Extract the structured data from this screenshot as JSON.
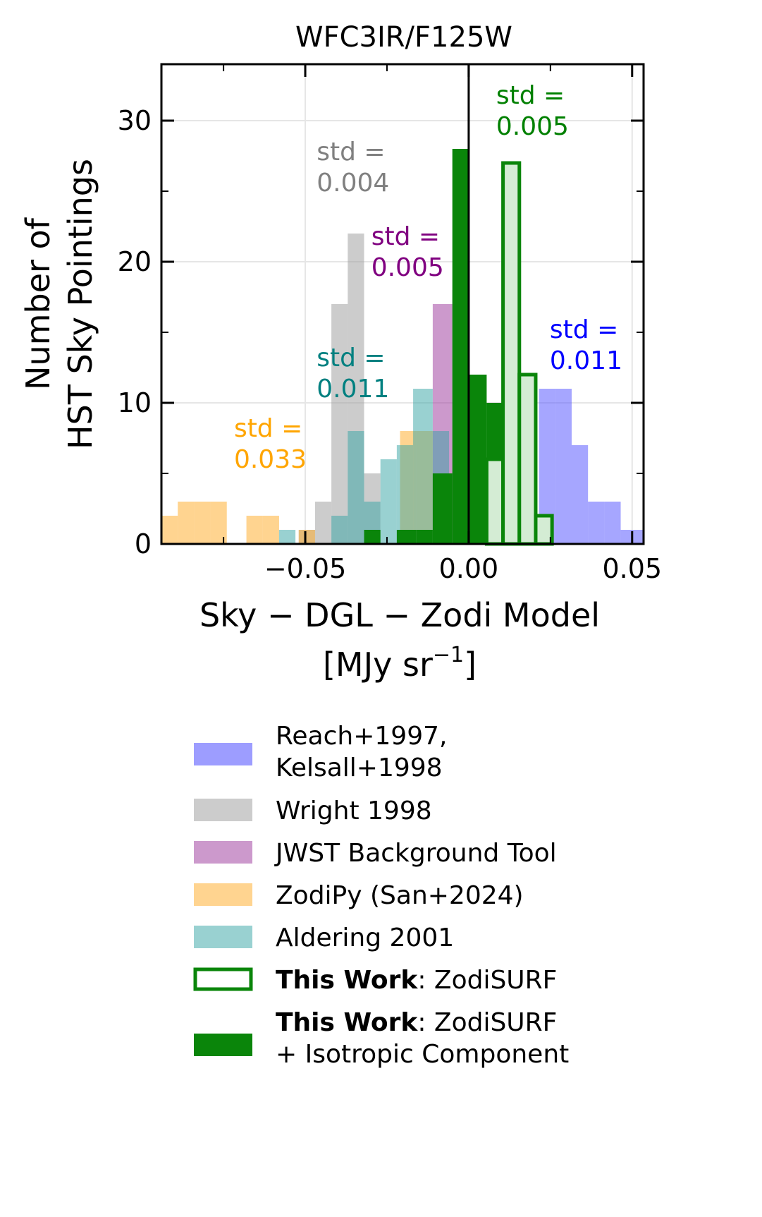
{
  "chart_data": {
    "type": "histogram",
    "title": "WFC3IR/F125W",
    "ylabel_lines": [
      "Number of",
      "HST Sky Pointings"
    ],
    "xlabel_line1": "Sky − DGL − Zodi Model",
    "xlabel_line2_main": "[MJy sr",
    "xlabel_line2_sup": "−1",
    "xlabel_line2_end": "]",
    "xlim": [
      -0.094,
      0.0535
    ],
    "ylim": [
      0,
      34
    ],
    "x_ticks": [
      -0.05,
      0.0,
      0.05
    ],
    "x_tick_labels": [
      "−0.05",
      "0.00",
      "0.05"
    ],
    "y_ticks": [
      0,
      10,
      20,
      30
    ],
    "y_tick_labels": [
      "0",
      "10",
      "20",
      "30"
    ],
    "reference_line_x": 0.0,
    "series": [
      {
        "name": "Wright 1998",
        "color": "#999999",
        "alpha": 0.5,
        "style": "filled",
        "bins": [
          {
            "x0": -0.052,
            "x1": -0.047,
            "count": 1
          },
          {
            "x0": -0.047,
            "x1": -0.042,
            "count": 3
          },
          {
            "x0": -0.042,
            "x1": -0.037,
            "count": 17
          },
          {
            "x0": -0.037,
            "x1": -0.032,
            "count": 22
          },
          {
            "x0": -0.032,
            "x1": -0.027,
            "count": 5
          }
        ]
      },
      {
        "name": "Reach+1997, Kelsall+1998",
        "color": "#4d4dff",
        "alpha": 0.5,
        "style": "filled",
        "bins": [
          {
            "x0": 0.0115,
            "x1": 0.0165,
            "count": 5
          },
          {
            "x0": 0.0165,
            "x1": 0.0215,
            "count": 2
          },
          {
            "x0": 0.0215,
            "x1": 0.0265,
            "count": 11
          },
          {
            "x0": 0.0265,
            "x1": 0.0315,
            "count": 11
          },
          {
            "x0": 0.0315,
            "x1": 0.0365,
            "count": 7
          },
          {
            "x0": 0.0365,
            "x1": 0.0415,
            "count": 3
          },
          {
            "x0": 0.0415,
            "x1": 0.0465,
            "count": 3
          },
          {
            "x0": 0.0465,
            "x1": 0.0535,
            "count": 1
          }
        ]
      },
      {
        "name": "JWST Background Tool",
        "color": "#993399",
        "alpha": 0.5,
        "style": "filled",
        "bins": [
          {
            "x0": -0.011,
            "x1": -0.005,
            "count": 17
          },
          {
            "x0": -0.005,
            "x1": 0.0,
            "count": 18
          }
        ]
      },
      {
        "name": "ZodiPy (San+2024)",
        "color": "#ffaa22",
        "alpha": 0.5,
        "style": "filled",
        "bins": [
          {
            "x0": -0.094,
            "x1": -0.089,
            "count": 2
          },
          {
            "x0": -0.089,
            "x1": -0.084,
            "count": 3
          },
          {
            "x0": -0.084,
            "x1": -0.079,
            "count": 3
          },
          {
            "x0": -0.079,
            "x1": -0.074,
            "count": 3
          },
          {
            "x0": -0.068,
            "x1": -0.063,
            "count": 2
          },
          {
            "x0": -0.063,
            "x1": -0.058,
            "count": 2
          },
          {
            "x0": -0.052,
            "x1": -0.047,
            "count": 1
          },
          {
            "x0": -0.021,
            "x1": -0.016,
            "count": 8
          },
          {
            "x0": -0.016,
            "x1": -0.011,
            "count": 8
          }
        ]
      },
      {
        "name": "Aldering 2001",
        "color": "#33a3a3",
        "alpha": 0.5,
        "style": "filled",
        "bins": [
          {
            "x0": -0.058,
            "x1": -0.053,
            "count": 1
          },
          {
            "x0": -0.042,
            "x1": -0.037,
            "count": 2
          },
          {
            "x0": -0.037,
            "x1": -0.032,
            "count": 8
          },
          {
            "x0": -0.032,
            "x1": -0.027,
            "count": 3
          },
          {
            "x0": -0.027,
            "x1": -0.022,
            "count": 6
          },
          {
            "x0": -0.022,
            "x1": -0.017,
            "count": 7
          },
          {
            "x0": -0.017,
            "x1": -0.011,
            "count": 11
          },
          {
            "x0": -0.011,
            "x1": -0.006,
            "count": 8
          }
        ]
      },
      {
        "name": "ZodiSURF + Isotropic Component",
        "legend_bold": "This Work",
        "legend_rest_1": ": ZodiSURF",
        "legend_rest_2": "+ Isotropic Component",
        "color": "#0a850a",
        "alpha": 1.0,
        "style": "filled",
        "bins": [
          {
            "x0": -0.032,
            "x1": -0.027,
            "count": 1
          },
          {
            "x0": -0.022,
            "x1": -0.016,
            "count": 1
          },
          {
            "x0": -0.016,
            "x1": -0.011,
            "count": 1
          },
          {
            "x0": -0.011,
            "x1": -0.005,
            "count": 5
          },
          {
            "x0": -0.005,
            "x1": 0.0,
            "count": 28
          },
          {
            "x0": 0.0,
            "x1": 0.0055,
            "count": 12
          },
          {
            "x0": 0.0055,
            "x1": 0.011,
            "count": 10
          }
        ]
      },
      {
        "name": "ZodiSURF",
        "legend_bold": "This Work",
        "legend_rest_1": ": ZodiSURF",
        "color": "#0a850a",
        "alpha": 1.0,
        "style": "outline",
        "bins": [
          {
            "x0": 0.0055,
            "x1": 0.0105,
            "count": 6
          },
          {
            "x0": 0.0105,
            "x1": 0.0155,
            "count": 27
          },
          {
            "x0": 0.0155,
            "x1": 0.0205,
            "count": 12
          },
          {
            "x0": 0.0205,
            "x1": 0.0255,
            "count": 2
          }
        ]
      }
    ],
    "annotations": [
      {
        "line1": "std =",
        "line2": "0.004",
        "color": "#808080",
        "x": -0.0465,
        "y": 27.2
      },
      {
        "line1": "std =",
        "line2": "0.005",
        "color": "#800080",
        "x": -0.0298,
        "y": 21.2
      },
      {
        "line1": "std =",
        "line2": "0.005",
        "color": "#008000",
        "x": 0.0084,
        "y": 31.2
      },
      {
        "line1": "std =",
        "line2": "0.011",
        "color": "#0000ff",
        "x": 0.0248,
        "y": 14.6
      },
      {
        "line1": "std =",
        "line2": "0.011",
        "color": "#008080",
        "x": -0.0465,
        "y": 12.6
      },
      {
        "line1": "std =",
        "line2": "0.033",
        "color": "#ffa500",
        "x": -0.0718,
        "y": 7.6
      }
    ],
    "legend_order": [
      "Reach+1997, Kelsall+1998",
      "Wright 1998",
      "JWST Background Tool",
      "ZodiPy (San+2024)",
      "Aldering 2001",
      "ZodiSURF",
      "ZodiSURF + Isotropic Component"
    ]
  },
  "legend": {
    "reach_line1": "Reach+1997,",
    "reach_line2": "Kelsall+1998",
    "wright": "Wright 1998",
    "jwst": "JWST Background Tool",
    "zodipy": "ZodiPy (San+2024)",
    "aldering": "Aldering 2001",
    "thiswork_bold": "This Work",
    "zodisurf_rest": ": ZodiSURF",
    "iso_bold": "This Work",
    "iso_rest_1": ": ZodiSURF",
    "iso_rest_2": "+ Isotropic Component"
  }
}
